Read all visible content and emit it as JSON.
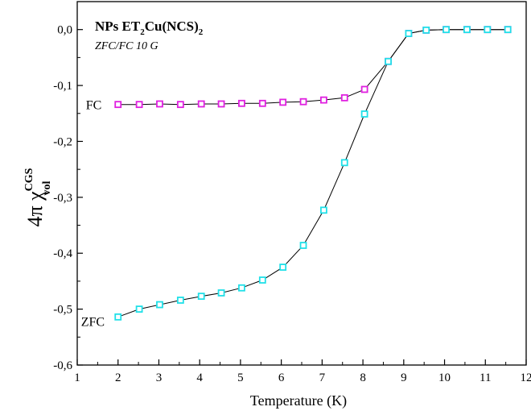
{
  "chart_data": {
    "type": "line",
    "title": "NPs ET2Cu(NCS)2",
    "title_parts": {
      "a": "NPs ET",
      "sub1": "2",
      "b": "Cu(NCS)",
      "sub2": "2"
    },
    "subtitle": "ZFC/FC 10 G",
    "xlabel": "Temperature (K)",
    "ylabel": "4π χvol CGS",
    "ylabel_parts": {
      "main": "4π χ",
      "sup": "CGS",
      "sub": "vol"
    },
    "xlim": [
      1,
      12
    ],
    "ylim": [
      -0.6,
      0.05
    ],
    "x_ticks": [
      1,
      2,
      3,
      4,
      5,
      6,
      7,
      8,
      9,
      10,
      11,
      12
    ],
    "x_tick_labels": [
      "1",
      "2",
      "3",
      "4",
      "5",
      "6",
      "7",
      "8",
      "9",
      "10",
      "11",
      "12"
    ],
    "y_ticks": [
      0.0,
      -0.1,
      -0.2,
      -0.3,
      -0.4,
      -0.5,
      -0.6
    ],
    "y_tick_labels": [
      "0,0",
      "-0,1",
      "-0,2",
      "-0,3",
      "-0,4",
      "-0,5",
      "-0,6"
    ],
    "grid": false,
    "series": [
      {
        "name": "FC",
        "color": "#e020e0",
        "marker": "open-square",
        "x": [
          2.0,
          2.52,
          3.02,
          3.53,
          4.04,
          4.53,
          5.03,
          5.54,
          6.04,
          6.54,
          7.04,
          7.55,
          8.04,
          8.62,
          9.12,
          9.55,
          10.04,
          10.55,
          11.05,
          11.55
        ],
        "y": [
          -0.134,
          -0.134,
          -0.133,
          -0.134,
          -0.133,
          -0.133,
          -0.132,
          -0.132,
          -0.13,
          -0.129,
          -0.126,
          -0.122,
          -0.107,
          -0.057,
          -0.007,
          -0.001,
          0.0,
          0.0,
          0.0,
          0.0
        ]
      },
      {
        "name": "ZFC",
        "color": "#20e0e8",
        "marker": "open-square",
        "x": [
          2.0,
          2.52,
          3.02,
          3.53,
          4.04,
          4.53,
          5.03,
          5.54,
          6.04,
          6.54,
          7.04,
          7.55,
          8.04,
          8.62,
          9.12,
          9.55,
          10.04,
          10.55,
          11.05,
          11.55
        ],
        "y": [
          -0.514,
          -0.5,
          -0.492,
          -0.484,
          -0.477,
          -0.471,
          -0.462,
          -0.448,
          -0.425,
          -0.386,
          -0.323,
          -0.238,
          -0.151,
          -0.057,
          -0.007,
          -0.001,
          0.0,
          0.0,
          0.0,
          0.0
        ]
      }
    ]
  }
}
